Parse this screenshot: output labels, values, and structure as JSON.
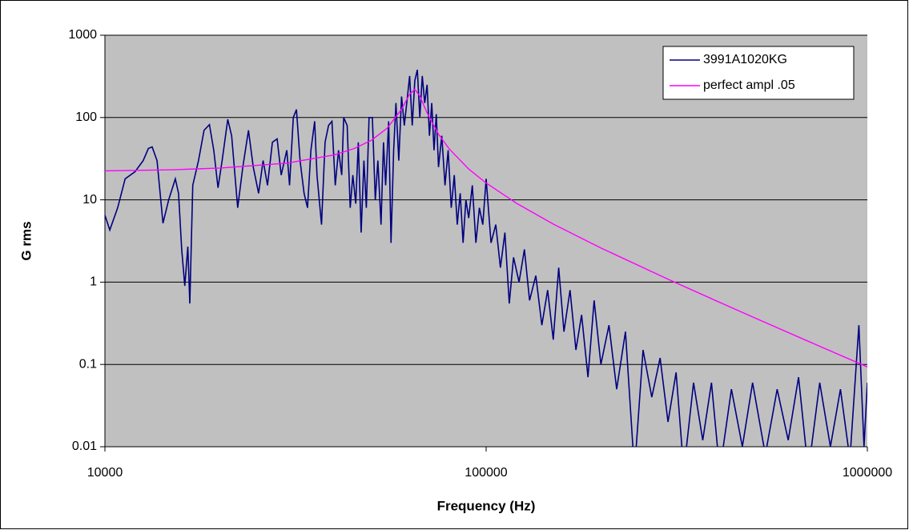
{
  "chart_data": {
    "type": "line",
    "xlabel": "Frequency (Hz)",
    "ylabel": "G rms",
    "xscale": "log",
    "yscale": "log",
    "xlim": [
      10000,
      1000000
    ],
    "ylim": [
      0.01,
      1000
    ],
    "xticks": [
      10000,
      100000,
      1000000
    ],
    "yticks": [
      0.01,
      0.1,
      1,
      10,
      100,
      1000
    ],
    "grid": true,
    "legend": "upper right",
    "series": [
      {
        "name": "3991A1020KG",
        "color": "#000080",
        "x": [
          10000,
          10300,
          10800,
          11300,
          12000,
          12600,
          13000,
          13300,
          13700,
          14200,
          14700,
          15300,
          15600,
          15900,
          16200,
          16500,
          16700,
          17000,
          17600,
          18200,
          18800,
          19300,
          19800,
          20300,
          21000,
          21500,
          22300,
          23000,
          23800,
          24500,
          25300,
          26000,
          26700,
          27500,
          28300,
          29000,
          30000,
          30500,
          31200,
          31800,
          32500,
          33300,
          34000,
          34700,
          35500,
          36000,
          37000,
          37800,
          38600,
          39400,
          40200,
          41000,
          41800,
          42300,
          43200,
          44000,
          44700,
          45500,
          46200,
          47000,
          47800,
          48500,
          49300,
          50300,
          51200,
          52000,
          53000,
          53800,
          54500,
          55500,
          56300,
          57200,
          58000,
          59000,
          60000,
          61000,
          62000,
          63000,
          64000,
          65000,
          66000,
          67000,
          68000,
          69000,
          70000,
          71000,
          72000,
          73000,
          74000,
          75000,
          76500,
          78000,
          79500,
          81000,
          82500,
          84000,
          85500,
          87000,
          88500,
          90000,
          92000,
          94000,
          96000,
          98000,
          100000,
          103000,
          106000,
          109000,
          112000,
          115000,
          118000,
          122000,
          126000,
          130000,
          135000,
          140000,
          145000,
          150000,
          155000,
          160000,
          166000,
          172000,
          178000,
          185000,
          192000,
          200000,
          210000,
          220000,
          232000,
          245000,
          258000,
          272000,
          286000,
          300000,
          315000,
          330000,
          350000,
          370000,
          390000,
          410000,
          440000,
          470000,
          500000,
          540000,
          580000,
          620000,
          660000,
          700000,
          750000,
          800000,
          850000,
          900000,
          950000,
          980000,
          1000000
        ],
        "values": [
          6.5,
          4.3,
          8,
          18,
          22,
          30,
          42,
          44,
          30,
          5.2,
          10,
          18,
          12,
          2.5,
          0.9,
          2.7,
          0.55,
          15,
          30,
          70,
          82,
          40,
          14,
          30,
          95,
          60,
          8,
          25,
          70,
          25,
          12,
          30,
          15,
          50,
          55,
          20,
          40,
          15,
          100,
          125,
          30,
          12,
          8,
          40,
          90,
          20,
          5,
          50,
          80,
          90,
          15,
          40,
          20,
          100,
          80,
          8,
          20,
          9,
          50,
          4,
          30,
          8,
          100,
          100,
          10,
          30,
          5,
          50,
          15,
          90,
          3,
          40,
          150,
          30,
          180,
          80,
          160,
          320,
          80,
          280,
          380,
          100,
          320,
          150,
          250,
          60,
          150,
          40,
          110,
          25,
          60,
          15,
          40,
          8,
          20,
          5,
          12,
          3,
          10,
          6,
          15,
          3,
          8,
          5,
          18,
          3,
          5,
          1.5,
          4,
          0.55,
          2,
          1,
          2.5,
          0.6,
          1.2,
          0.3,
          0.8,
          0.2,
          1.5,
          0.25,
          0.8,
          0.15,
          0.4,
          0.07,
          0.6,
          0.1,
          0.3,
          0.05,
          0.25,
          0.005,
          0.15,
          0.04,
          0.12,
          0.02,
          0.08,
          0.005,
          0.06,
          0.012,
          0.06,
          0.005,
          0.05,
          0.01,
          0.06,
          0.008,
          0.05,
          0.012,
          0.07,
          0.005,
          0.06,
          0.01,
          0.05,
          0.007,
          0.3,
          0.01,
          0.06
        ]
      },
      {
        "name": "perfect ampl .05",
        "color": "#ff00ff",
        "x": [
          10000,
          15000,
          20000,
          30000,
          40000,
          45000,
          50000,
          55000,
          60000,
          63000,
          65000,
          67000,
          70000,
          75000,
          80000,
          90000,
          100000,
          120000,
          150000,
          200000,
          300000,
          400000,
          500000,
          700000,
          1000000
        ],
        "values": [
          22.5,
          23.2,
          24.3,
          27.9,
          35.2,
          41.9,
          52.9,
          74.2,
          126,
          192,
          220,
          182,
          114,
          62.7,
          41.6,
          23.7,
          16.0,
          9.11,
          5.08,
          2.6,
          1.084,
          0.597,
          0.378,
          0.191,
          0.0933
        ]
      }
    ]
  }
}
